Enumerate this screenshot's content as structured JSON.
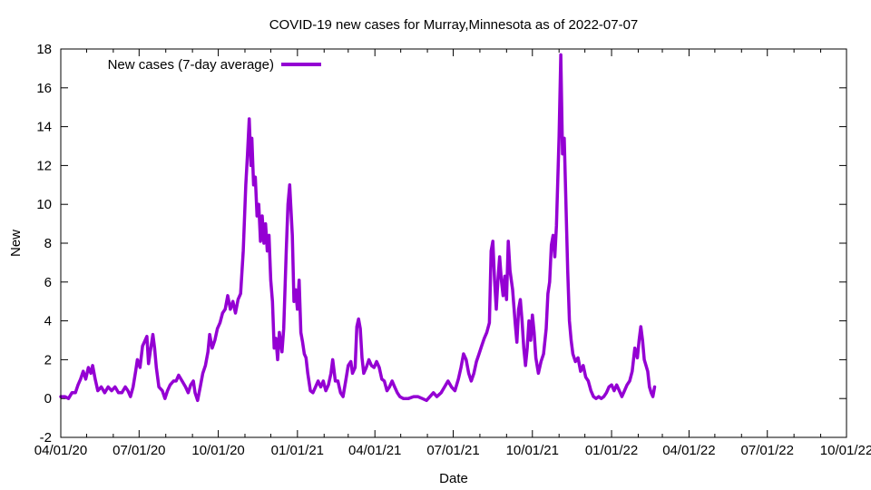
{
  "chart_data": {
    "type": "line",
    "title": "COVID-19 new cases for Murray,Minnesota as of 2022-07-07",
    "xlabel": "Date",
    "ylabel": "New",
    "xlim": [
      "2020-04-01",
      "2022-10-01"
    ],
    "ylim": [
      -2,
      18
    ],
    "yticks": [
      -2,
      0,
      2,
      4,
      6,
      8,
      10,
      12,
      14,
      16,
      18
    ],
    "xticks": [
      {
        "date": "2020-04-01",
        "label": "04/01/20"
      },
      {
        "date": "2020-07-01",
        "label": "07/01/20"
      },
      {
        "date": "2020-10-01",
        "label": "10/01/20"
      },
      {
        "date": "2021-01-01",
        "label": "01/01/21"
      },
      {
        "date": "2021-04-01",
        "label": "04/01/21"
      },
      {
        "date": "2021-07-01",
        "label": "07/01/21"
      },
      {
        "date": "2021-10-01",
        "label": "10/01/21"
      },
      {
        "date": "2022-01-01",
        "label": "01/01/22"
      },
      {
        "date": "2022-04-01",
        "label": "04/01/22"
      },
      {
        "date": "2022-07-01",
        "label": "07/01/22"
      },
      {
        "date": "2022-10-01",
        "label": "10/01/22"
      }
    ],
    "grid": false,
    "legend_position": "top-left",
    "series": [
      {
        "name": "New cases (7-day average)",
        "color": "#9400d3",
        "points": [
          [
            "2020-04-01",
            0.1
          ],
          [
            "2020-04-06",
            0.1
          ],
          [
            "2020-04-10",
            0.0
          ],
          [
            "2020-04-14",
            0.3
          ],
          [
            "2020-04-18",
            0.3
          ],
          [
            "2020-04-21",
            0.7
          ],
          [
            "2020-04-24",
            1.0
          ],
          [
            "2020-04-27",
            1.4
          ],
          [
            "2020-04-30",
            1.0
          ],
          [
            "2020-05-03",
            1.6
          ],
          [
            "2020-05-06",
            1.3
          ],
          [
            "2020-05-08",
            1.7
          ],
          [
            "2020-05-11",
            1.0
          ],
          [
            "2020-05-14",
            0.4
          ],
          [
            "2020-05-18",
            0.6
          ],
          [
            "2020-05-22",
            0.3
          ],
          [
            "2020-05-26",
            0.6
          ],
          [
            "2020-05-30",
            0.4
          ],
          [
            "2020-06-03",
            0.6
          ],
          [
            "2020-06-07",
            0.3
          ],
          [
            "2020-06-11",
            0.3
          ],
          [
            "2020-06-15",
            0.6
          ],
          [
            "2020-06-18",
            0.4
          ],
          [
            "2020-06-21",
            0.1
          ],
          [
            "2020-06-24",
            0.6
          ],
          [
            "2020-06-27",
            1.4
          ],
          [
            "2020-06-29",
            2.0
          ],
          [
            "2020-07-02",
            1.6
          ],
          [
            "2020-07-05",
            2.7
          ],
          [
            "2020-07-08",
            3.0
          ],
          [
            "2020-07-10",
            3.2
          ],
          [
            "2020-07-12",
            1.8
          ],
          [
            "2020-07-14",
            2.4
          ],
          [
            "2020-07-17",
            3.3
          ],
          [
            "2020-07-19",
            2.6
          ],
          [
            "2020-07-21",
            1.6
          ],
          [
            "2020-07-24",
            0.6
          ],
          [
            "2020-07-28",
            0.4
          ],
          [
            "2020-07-31",
            0.0
          ],
          [
            "2020-08-03",
            0.4
          ],
          [
            "2020-08-06",
            0.7
          ],
          [
            "2020-08-10",
            0.9
          ],
          [
            "2020-08-13",
            0.9
          ],
          [
            "2020-08-16",
            1.2
          ],
          [
            "2020-08-20",
            0.9
          ],
          [
            "2020-08-24",
            0.6
          ],
          [
            "2020-08-27",
            0.3
          ],
          [
            "2020-08-30",
            0.7
          ],
          [
            "2020-09-02",
            0.9
          ],
          [
            "2020-09-04",
            0.3
          ],
          [
            "2020-09-07",
            -0.1
          ],
          [
            "2020-09-10",
            0.6
          ],
          [
            "2020-09-13",
            1.3
          ],
          [
            "2020-09-16",
            1.7
          ],
          [
            "2020-09-19",
            2.4
          ],
          [
            "2020-09-21",
            3.3
          ],
          [
            "2020-09-24",
            2.6
          ],
          [
            "2020-09-27",
            3.0
          ],
          [
            "2020-09-30",
            3.6
          ],
          [
            "2020-10-03",
            3.9
          ],
          [
            "2020-10-06",
            4.4
          ],
          [
            "2020-10-09",
            4.6
          ],
          [
            "2020-10-12",
            5.3
          ],
          [
            "2020-10-15",
            4.6
          ],
          [
            "2020-10-18",
            5.0
          ],
          [
            "2020-10-21",
            4.4
          ],
          [
            "2020-10-24",
            5.1
          ],
          [
            "2020-10-27",
            5.4
          ],
          [
            "2020-10-30",
            7.6
          ],
          [
            "2020-11-02",
            11.0
          ],
          [
            "2020-11-04",
            12.6
          ],
          [
            "2020-11-06",
            14.4
          ],
          [
            "2020-11-08",
            12.0
          ],
          [
            "2020-11-09",
            13.4
          ],
          [
            "2020-11-11",
            11.0
          ],
          [
            "2020-11-13",
            11.4
          ],
          [
            "2020-11-15",
            9.4
          ],
          [
            "2020-11-17",
            10.0
          ],
          [
            "2020-11-19",
            8.1
          ],
          [
            "2020-11-21",
            9.4
          ],
          [
            "2020-11-23",
            8.0
          ],
          [
            "2020-11-25",
            9.0
          ],
          [
            "2020-11-27",
            7.6
          ],
          [
            "2020-11-29",
            8.4
          ],
          [
            "2020-12-01",
            6.1
          ],
          [
            "2020-12-03",
            5.0
          ],
          [
            "2020-12-05",
            2.6
          ],
          [
            "2020-12-07",
            3.1
          ],
          [
            "2020-12-09",
            2.0
          ],
          [
            "2020-12-11",
            3.4
          ],
          [
            "2020-12-14",
            2.4
          ],
          [
            "2020-12-16",
            3.6
          ],
          [
            "2020-12-19",
            7.6
          ],
          [
            "2020-12-21",
            10.0
          ],
          [
            "2020-12-23",
            11.0
          ],
          [
            "2020-12-26",
            8.4
          ],
          [
            "2020-12-28",
            5.0
          ],
          [
            "2020-12-30",
            5.6
          ],
          [
            "2021-01-01",
            4.6
          ],
          [
            "2021-01-03",
            6.1
          ],
          [
            "2021-01-05",
            3.4
          ],
          [
            "2021-01-07",
            2.9
          ],
          [
            "2021-01-09",
            2.3
          ],
          [
            "2021-01-11",
            2.1
          ],
          [
            "2021-01-13",
            1.3
          ],
          [
            "2021-01-16",
            0.4
          ],
          [
            "2021-01-19",
            0.3
          ],
          [
            "2021-01-22",
            0.6
          ],
          [
            "2021-01-25",
            0.9
          ],
          [
            "2021-01-28",
            0.6
          ],
          [
            "2021-01-31",
            0.9
          ],
          [
            "2021-02-03",
            0.4
          ],
          [
            "2021-02-06",
            0.7
          ],
          [
            "2021-02-09",
            1.3
          ],
          [
            "2021-02-11",
            2.0
          ],
          [
            "2021-02-14",
            0.9
          ],
          [
            "2021-02-17",
            0.9
          ],
          [
            "2021-02-20",
            0.3
          ],
          [
            "2021-02-23",
            0.1
          ],
          [
            "2021-02-26",
            0.9
          ],
          [
            "2021-03-01",
            1.7
          ],
          [
            "2021-03-04",
            1.9
          ],
          [
            "2021-03-06",
            1.3
          ],
          [
            "2021-03-09",
            1.6
          ],
          [
            "2021-03-11",
            3.7
          ],
          [
            "2021-03-13",
            4.1
          ],
          [
            "2021-03-15",
            3.6
          ],
          [
            "2021-03-17",
            2.1
          ],
          [
            "2021-03-19",
            1.3
          ],
          [
            "2021-03-22",
            1.6
          ],
          [
            "2021-03-25",
            2.0
          ],
          [
            "2021-03-28",
            1.7
          ],
          [
            "2021-03-31",
            1.6
          ],
          [
            "2021-04-03",
            1.9
          ],
          [
            "2021-04-06",
            1.6
          ],
          [
            "2021-04-09",
            1.0
          ],
          [
            "2021-04-12",
            0.9
          ],
          [
            "2021-04-15",
            0.4
          ],
          [
            "2021-04-18",
            0.6
          ],
          [
            "2021-04-21",
            0.9
          ],
          [
            "2021-04-24",
            0.6
          ],
          [
            "2021-04-27",
            0.3
          ],
          [
            "2021-04-30",
            0.1
          ],
          [
            "2021-05-04",
            0.0
          ],
          [
            "2021-05-10",
            0.0
          ],
          [
            "2021-05-16",
            0.1
          ],
          [
            "2021-05-21",
            0.1
          ],
          [
            "2021-05-26",
            0.0
          ],
          [
            "2021-05-31",
            -0.1
          ],
          [
            "2021-06-04",
            0.1
          ],
          [
            "2021-06-08",
            0.3
          ],
          [
            "2021-06-12",
            0.1
          ],
          [
            "2021-06-17",
            0.3
          ],
          [
            "2021-06-21",
            0.6
          ],
          [
            "2021-06-25",
            0.9
          ],
          [
            "2021-06-29",
            0.6
          ],
          [
            "2021-07-03",
            0.4
          ],
          [
            "2021-07-07",
            1.0
          ],
          [
            "2021-07-10",
            1.6
          ],
          [
            "2021-07-13",
            2.3
          ],
          [
            "2021-07-16",
            2.0
          ],
          [
            "2021-07-19",
            1.3
          ],
          [
            "2021-07-22",
            0.9
          ],
          [
            "2021-07-25",
            1.3
          ],
          [
            "2021-07-28",
            1.9
          ],
          [
            "2021-07-31",
            2.3
          ],
          [
            "2021-08-03",
            2.7
          ],
          [
            "2021-08-06",
            3.1
          ],
          [
            "2021-08-09",
            3.4
          ],
          [
            "2021-08-12",
            3.9
          ],
          [
            "2021-08-14",
            7.6
          ],
          [
            "2021-08-16",
            8.1
          ],
          [
            "2021-08-18",
            6.1
          ],
          [
            "2021-08-20",
            4.6
          ],
          [
            "2021-08-22",
            6.1
          ],
          [
            "2021-08-24",
            7.3
          ],
          [
            "2021-08-26",
            6.1
          ],
          [
            "2021-08-28",
            5.3
          ],
          [
            "2021-08-30",
            6.3
          ],
          [
            "2021-09-01",
            5.1
          ],
          [
            "2021-09-03",
            8.1
          ],
          [
            "2021-09-05",
            6.6
          ],
          [
            "2021-09-08",
            5.6
          ],
          [
            "2021-09-11",
            3.9
          ],
          [
            "2021-09-13",
            2.9
          ],
          [
            "2021-09-15",
            4.6
          ],
          [
            "2021-09-17",
            5.1
          ],
          [
            "2021-09-19",
            4.0
          ],
          [
            "2021-09-21",
            2.6
          ],
          [
            "2021-09-23",
            1.7
          ],
          [
            "2021-09-25",
            2.6
          ],
          [
            "2021-09-27",
            4.0
          ],
          [
            "2021-09-29",
            3.0
          ],
          [
            "2021-10-01",
            4.3
          ],
          [
            "2021-10-03",
            3.4
          ],
          [
            "2021-10-05",
            2.1
          ],
          [
            "2021-10-08",
            1.3
          ],
          [
            "2021-10-11",
            1.9
          ],
          [
            "2021-10-14",
            2.3
          ],
          [
            "2021-10-17",
            3.6
          ],
          [
            "2021-10-19",
            5.4
          ],
          [
            "2021-10-21",
            6.0
          ],
          [
            "2021-10-23",
            7.9
          ],
          [
            "2021-10-25",
            8.4
          ],
          [
            "2021-10-27",
            7.3
          ],
          [
            "2021-10-29",
            8.9
          ],
          [
            "2021-11-01",
            13.5
          ],
          [
            "2021-11-03",
            17.7
          ],
          [
            "2021-11-05",
            12.6
          ],
          [
            "2021-11-07",
            13.4
          ],
          [
            "2021-11-09",
            10.0
          ],
          [
            "2021-11-11",
            6.6
          ],
          [
            "2021-11-13",
            4.0
          ],
          [
            "2021-11-15",
            3.0
          ],
          [
            "2021-11-17",
            2.3
          ],
          [
            "2021-11-20",
            1.9
          ],
          [
            "2021-11-23",
            2.1
          ],
          [
            "2021-11-26",
            1.4
          ],
          [
            "2021-11-29",
            1.7
          ],
          [
            "2021-12-02",
            1.1
          ],
          [
            "2021-12-05",
            0.9
          ],
          [
            "2021-12-08",
            0.4
          ],
          [
            "2021-12-11",
            0.1
          ],
          [
            "2021-12-14",
            0.0
          ],
          [
            "2021-12-17",
            0.1
          ],
          [
            "2021-12-20",
            0.0
          ],
          [
            "2021-12-23",
            0.1
          ],
          [
            "2021-12-26",
            0.3
          ],
          [
            "2021-12-29",
            0.6
          ],
          [
            "2022-01-01",
            0.7
          ],
          [
            "2022-01-04",
            0.4
          ],
          [
            "2022-01-07",
            0.7
          ],
          [
            "2022-01-10",
            0.4
          ],
          [
            "2022-01-13",
            0.1
          ],
          [
            "2022-01-16",
            0.4
          ],
          [
            "2022-01-19",
            0.7
          ],
          [
            "2022-01-22",
            0.9
          ],
          [
            "2022-01-25",
            1.4
          ],
          [
            "2022-01-28",
            2.6
          ],
          [
            "2022-01-31",
            2.1
          ],
          [
            "2022-02-02",
            3.0
          ],
          [
            "2022-02-04",
            3.7
          ],
          [
            "2022-02-06",
            3.0
          ],
          [
            "2022-02-08",
            2.0
          ],
          [
            "2022-02-10",
            1.7
          ],
          [
            "2022-02-12",
            1.4
          ],
          [
            "2022-02-14",
            0.6
          ],
          [
            "2022-02-16",
            0.3
          ],
          [
            "2022-02-18",
            0.1
          ],
          [
            "2022-02-20",
            0.6
          ]
        ]
      }
    ]
  }
}
